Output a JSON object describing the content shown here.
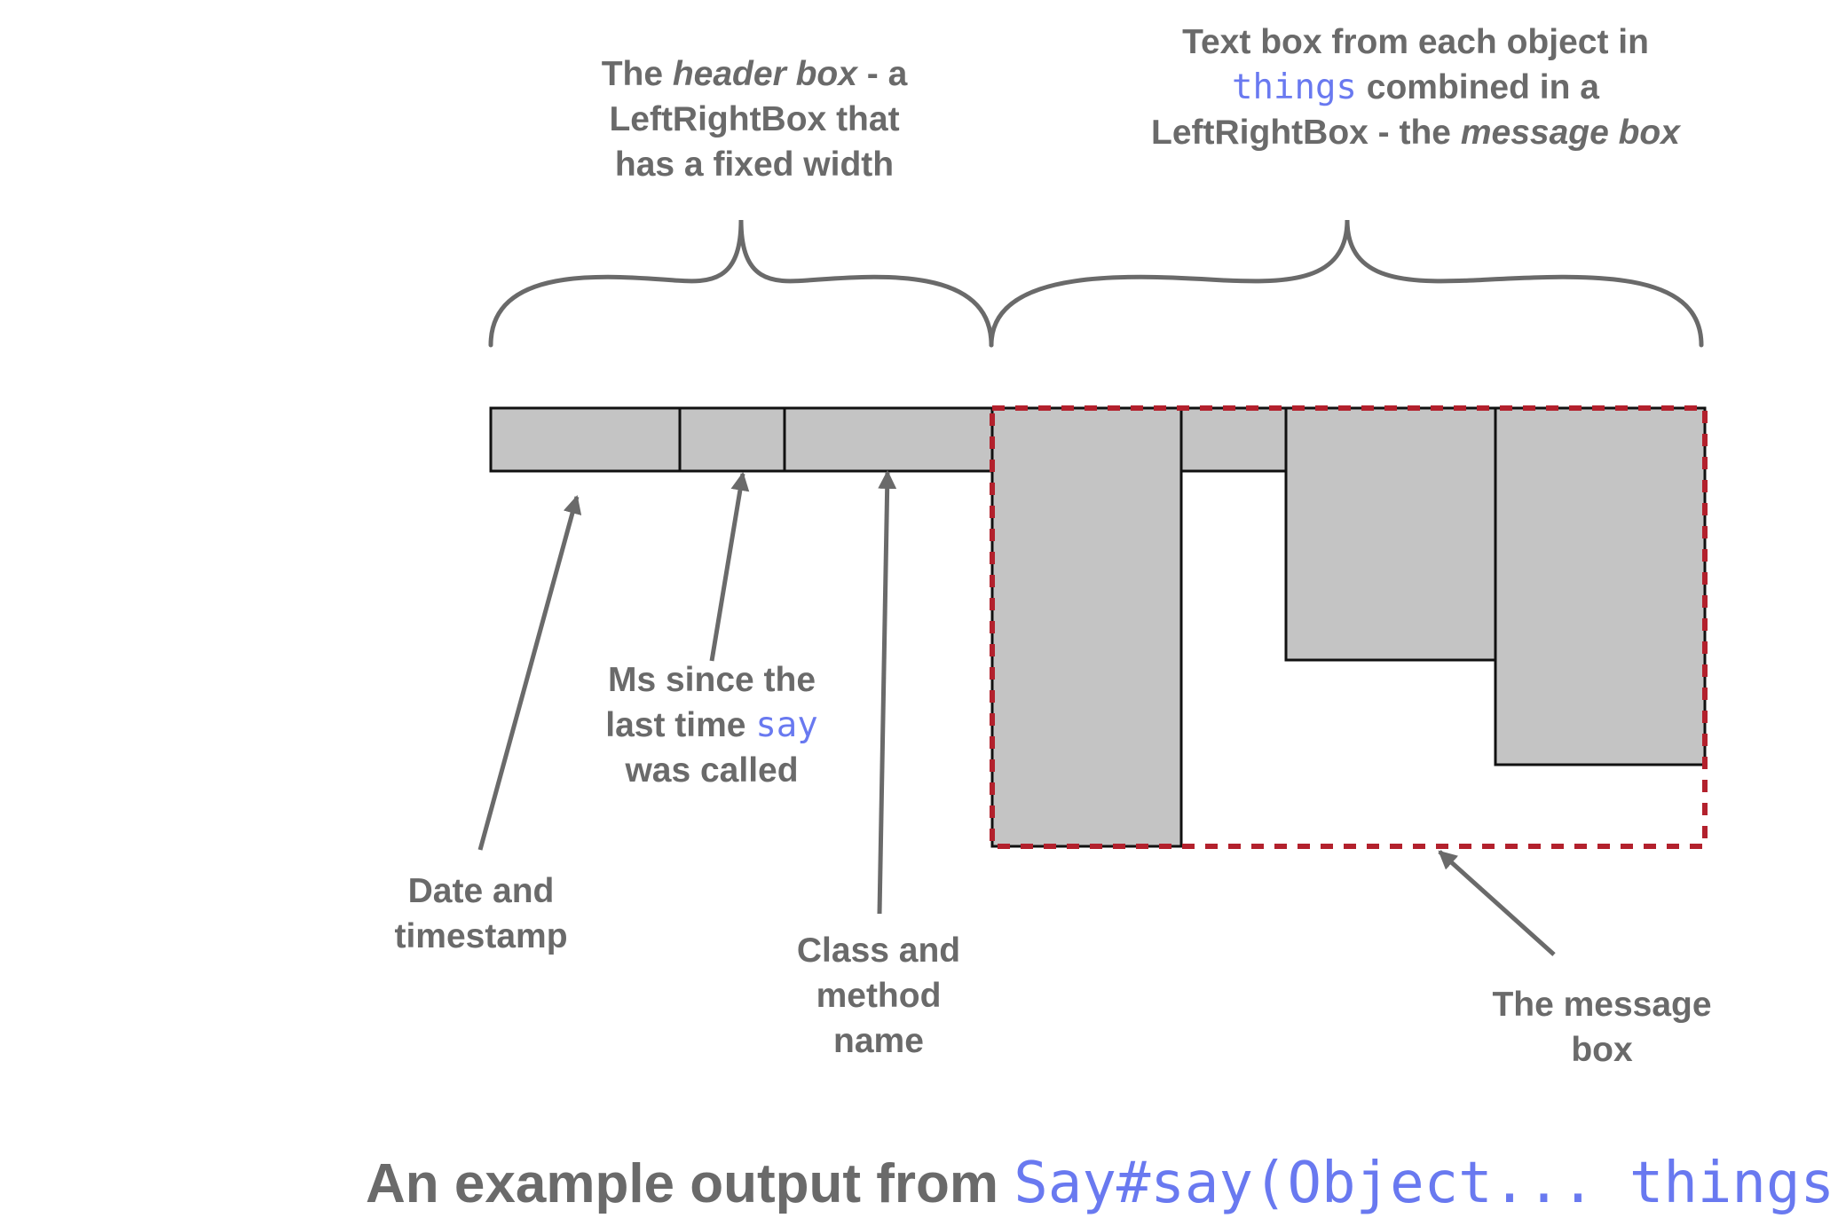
{
  "labels": {
    "header_box": {
      "line1_pre": "The ",
      "line1_emph": "header box",
      "line1_post": " -  a",
      "line2": "LeftRightBox that",
      "line3": "has a fixed width"
    },
    "message_box_top": {
      "line1": "Text box from each object in",
      "line2_code": "things",
      "line2_post": " combined in a",
      "line3_pre": "LeftRightBox - the ",
      "line3_emph": "message box"
    },
    "ms_since": {
      "line1": "Ms since the",
      "line2_pre": "last time ",
      "line2_code": "say",
      "line3": "was called"
    },
    "date": {
      "line1": "Date and",
      "line2": "timestamp"
    },
    "class_method": {
      "line1": "Class and",
      "line2": "method",
      "line3": "name"
    },
    "message_box_bottom": {
      "line1": "The message",
      "line2": "box"
    }
  },
  "caption": {
    "text": "An example output from ",
    "code": "Say#say(Object... things)"
  },
  "colors": {
    "box_fill": "#c4c4c4",
    "box_stroke": "#111111",
    "arrow": "#6a6a6a",
    "dashed_outline": "#b3212d",
    "code_text": "#6979f0",
    "label_text": "#6a6a6a"
  }
}
